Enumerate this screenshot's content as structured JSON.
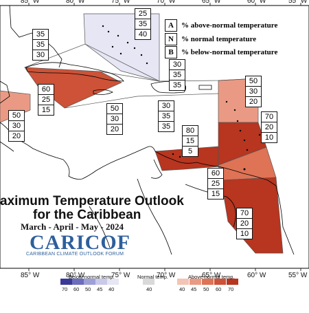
{
  "map": {
    "title_line1": "aximum Temperature Outlook",
    "title_line2": "for the Caribbean",
    "period": "March - April - May - 2024",
    "logo_text": "CARICOF",
    "logo_subtitle": "CARIBBEAN CLIMATE OUTLOOK FORUM",
    "longitude_labels": [
      "85° W",
      "80° W",
      "75° W",
      "70° W",
      "65° W",
      "60° W",
      "55° W"
    ],
    "colors": {
      "above_40": "#f4c4b4",
      "above_45": "#ea9a84",
      "above_50": "#de7356",
      "above_60": "#cd5237",
      "above_70": "#b8351f",
      "normal_40": "#d9d9d9",
      "below_40": "#e6e6f4",
      "below_45": "#c9c9ea",
      "below_50": "#9f9fd8",
      "below_60": "#6d6dbd",
      "below_70": "#3a3a96",
      "land_line": "#000000",
      "region_line": "#555555"
    }
  },
  "key": {
    "items": [
      {
        "letter": "A",
        "text": "% above-normal temperature"
      },
      {
        "letter": "N",
        "text": "% normal temperature"
      },
      {
        "letter": "B",
        "text": "% below-normal temperature"
      }
    ]
  },
  "probability_boxes": [
    {
      "id": "bahamas",
      "values": [
        "25",
        "35",
        "40"
      ]
    },
    {
      "id": "cuba-west",
      "values": [
        "35",
        "35",
        "30"
      ]
    },
    {
      "id": "cuba-central",
      "values": [
        "60",
        "25",
        "15"
      ]
    },
    {
      "id": "belize",
      "values": [
        "50",
        "30",
        "20"
      ]
    },
    {
      "id": "jamaica-caymans",
      "values": [
        "50",
        "30",
        "20"
      ]
    },
    {
      "id": "hispaniola",
      "values": [
        "30",
        "35",
        "35"
      ]
    },
    {
      "id": "pr-vi",
      "values": [
        "30",
        "35",
        "35"
      ]
    },
    {
      "id": "leeward",
      "values": [
        "50",
        "30",
        "20"
      ]
    },
    {
      "id": "windward",
      "values": [
        "70",
        "20",
        "10"
      ]
    },
    {
      "id": "abc-islands",
      "values": [
        "80",
        "15",
        "5"
      ]
    },
    {
      "id": "trinidad",
      "values": [
        "60",
        "25",
        "15"
      ]
    },
    {
      "id": "guianas",
      "values": [
        "70",
        "20",
        "10"
      ]
    }
  ],
  "colorbar": {
    "below_label": "Below-normal temp.",
    "normal_label": "Normal temp.",
    "above_label": "Above-normal temp.",
    "below_ticks": [
      "70",
      "60",
      "50",
      "45",
      "40"
    ],
    "normal_ticks": [
      "40"
    ],
    "above_ticks": [
      "40",
      "45",
      "50",
      "60",
      "70"
    ]
  }
}
